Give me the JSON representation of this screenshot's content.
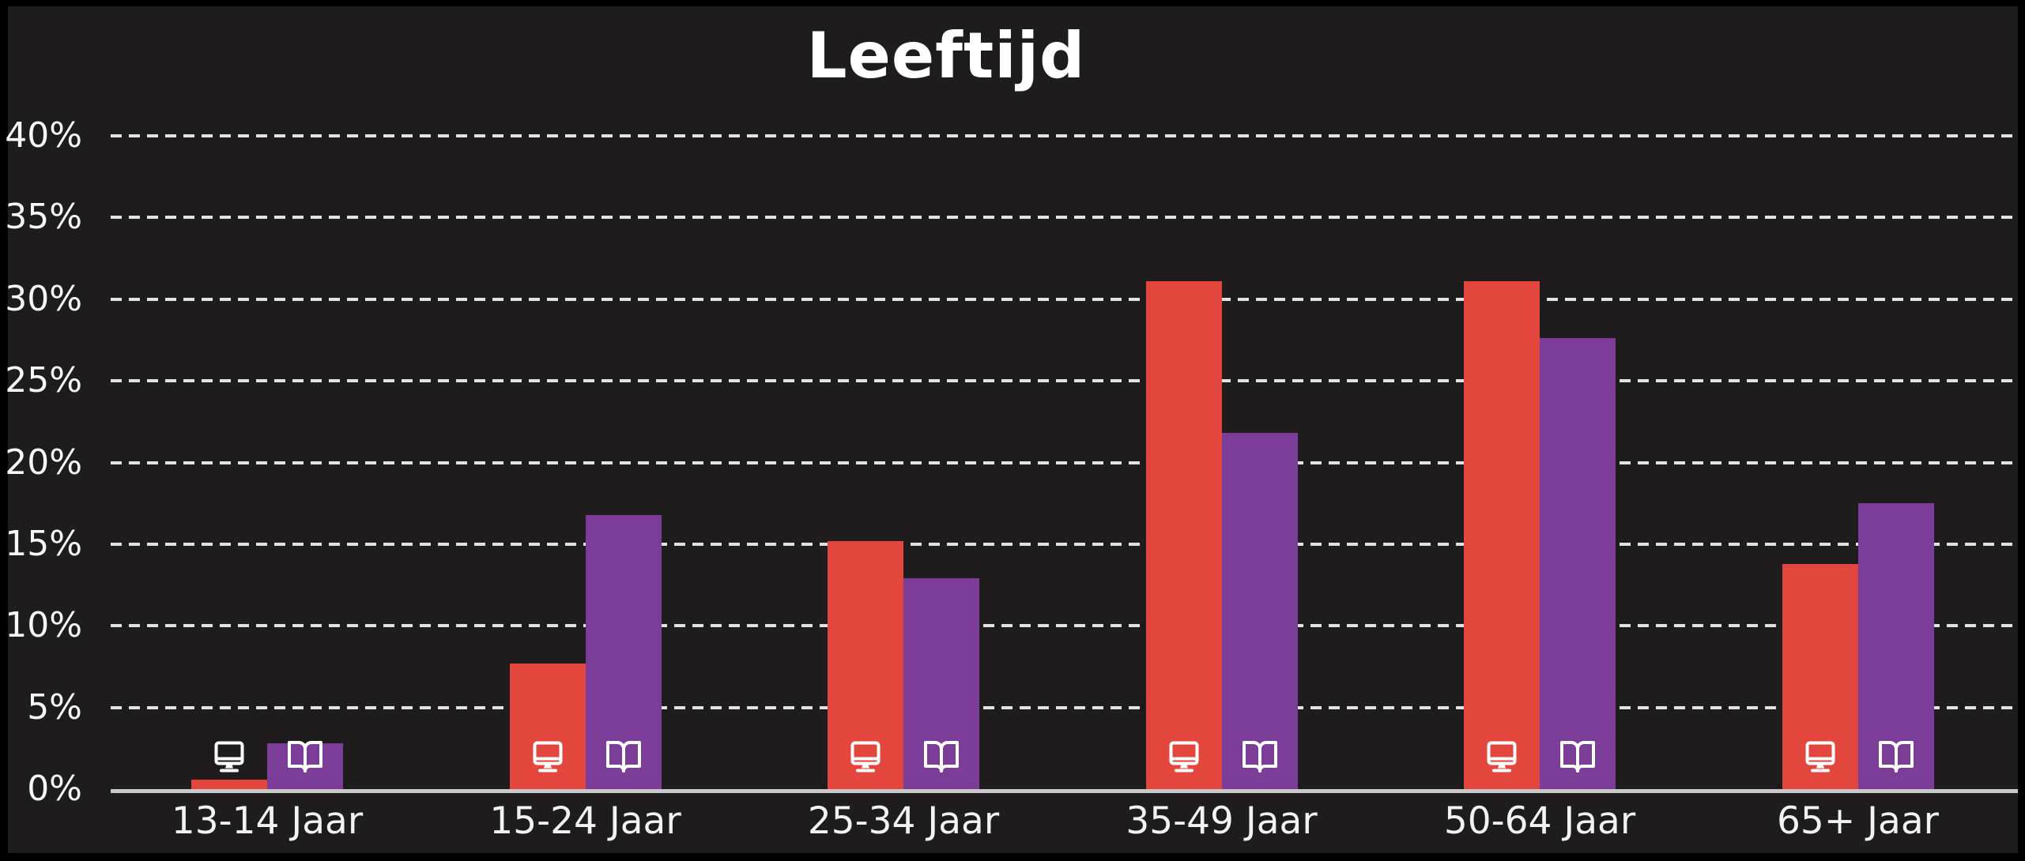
{
  "title": "Leeftijd",
  "colors": {
    "frame": "#000000",
    "background": "#1E1C1C",
    "grid": "#E2E2E2",
    "axis_line": "#C9C9C9",
    "text": "#F7F7F7",
    "title_text": "#FFFFFF",
    "monitor_series": "#E3463D",
    "book_series": "#7B3D98",
    "icon": "#FFFFFF"
  },
  "chart_data": {
    "type": "bar",
    "title": "Leeftijd",
    "categories": [
      "13-14 Jaar",
      "15-24 Jaar",
      "25-34 Jaar",
      "35-49 Jaar",
      "50-64 Jaar",
      "65+ Jaar"
    ],
    "series": [
      {
        "name": "monitor",
        "icon": "monitor-icon",
        "color": "#E3463D",
        "values": [
          0.6,
          7.7,
          15.2,
          31.1,
          31.1,
          13.8
        ]
      },
      {
        "name": "open-book",
        "icon": "open-book-icon",
        "color": "#7B3D98",
        "values": [
          2.8,
          16.8,
          12.9,
          21.8,
          27.6,
          17.5
        ]
      }
    ],
    "xlabel": "",
    "ylabel": "",
    "ylim": [
      0,
      40
    ],
    "ytick_step": 5,
    "yticks": [
      "0%",
      "5%",
      "10%",
      "15%",
      "20%",
      "25%",
      "30%",
      "35%",
      "40%"
    ],
    "value_unit": "%",
    "grid": "horizontal-dashed",
    "legend_position": "none (series identified by white icons at bar bases)"
  }
}
